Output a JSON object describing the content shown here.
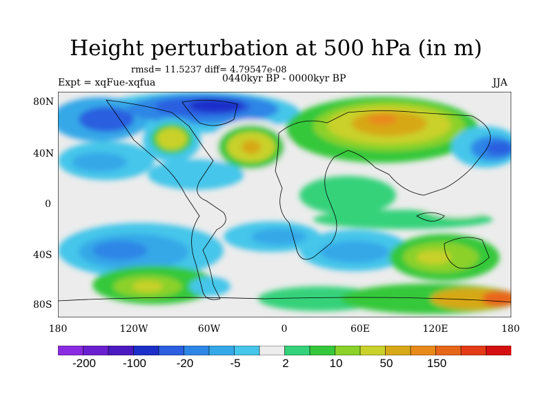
{
  "title": "Height perturbation at 500 hPa (in m)",
  "stats": "rmsd= 11.5237 diff= 4.79547e-08",
  "experiment": "Expt = xqFue-xqfua",
  "period": "0440kyr BP - 0000kyr BP",
  "season": "JJA",
  "lat_labels": [
    "80N",
    "40N",
    "0",
    "40S",
    "80S"
  ],
  "lon_labels": [
    "180",
    "120W",
    "60W",
    "0",
    "60E",
    "120E",
    "180"
  ],
  "colorbar": {
    "colors": [
      "#8a2be2",
      "#6a1fd0",
      "#4b19c0",
      "#1c2fc9",
      "#2b5fe0",
      "#2e86e6",
      "#35a8e8",
      "#45c6ea",
      "#ececec",
      "#34d27a",
      "#35c83b",
      "#8bd12a",
      "#c9d12b",
      "#d7a818",
      "#e88a1a",
      "#e8661a",
      "#e43c16",
      "#d61010"
    ],
    "labels": [
      "-200",
      "-100",
      "-20",
      "-5",
      "2",
      "10",
      "50",
      "150"
    ]
  }
}
